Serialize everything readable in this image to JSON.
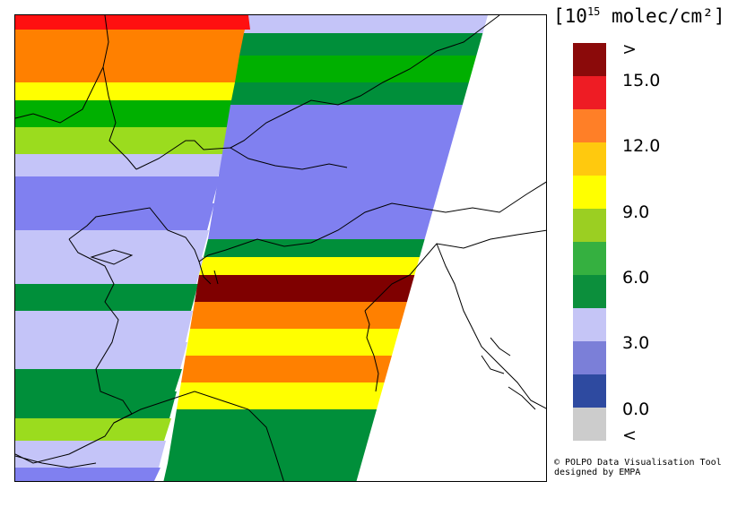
{
  "legend": {
    "title_prefix": "[10",
    "title_exp": "15",
    "title_suffix": " molec/cm²]",
    "labels": [
      ">",
      "15.0",
      "12.0",
      "9.0",
      "6.0",
      "3.0",
      "0.0",
      "<"
    ],
    "colors": [
      "#8b0a0a",
      "#ee1c24",
      "#ff7f27",
      "#ffc90e",
      "#ffff00",
      "#9bcf22",
      "#35b040",
      "#0c8f3c",
      "#c5c5f6",
      "#7b7fd8",
      "#2e4aa0",
      "#cccccc"
    ]
  },
  "credit": {
    "line1": "© POLPO Data Visualisation Tool",
    "line2": "designed by EMPA"
  },
  "map": {
    "band_colors": {
      "darkred": "#7f0000",
      "red": "#ff1010",
      "orange": "#ff8000",
      "yellow": "#ffff00",
      "lightgreen": "#9bdc1e",
      "green": "#00b000",
      "darkgreen": "#008f3a",
      "lavender": "#c4c4f8",
      "periwinkle": "#8080f0"
    }
  }
}
